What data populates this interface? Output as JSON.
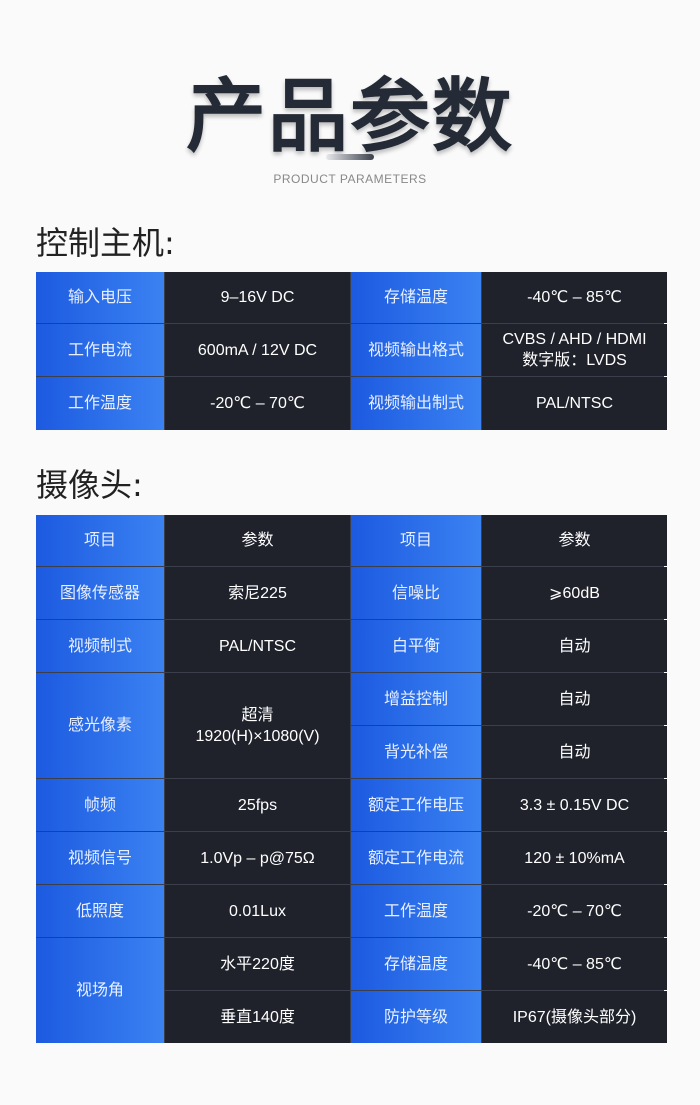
{
  "header": {
    "title": "产品参数",
    "subtitle": "PRODUCT PARAMETERS"
  },
  "host": {
    "heading": "控制主机:",
    "rows": [
      [
        "输入电压",
        "9–16V DC",
        "存储温度",
        "-40℃ – 85℃"
      ],
      [
        "工作电流",
        "600mA / 12V DC",
        "视频输出格式",
        "CVBS / AHD / HDMI\n数字版：LVDS"
      ],
      [
        "工作温度",
        "-20℃ – 70℃",
        "视频输出制式",
        "PAL/NTSC"
      ]
    ]
  },
  "camera": {
    "heading": "摄像头:",
    "cells": {
      "h1": "项目",
      "h2": "参数",
      "h3": "项目",
      "h4": "参数",
      "r1a": "图像传感器",
      "r1b": "索尼225",
      "r1c": "信噪比",
      "r1d": "⩾60dB",
      "r2a": "视频制式",
      "r2b": "PAL/NTSC",
      "r2c": "白平衡",
      "r2d": "自动",
      "r3a": "感光像素",
      "r3b": "超清\n1920(H)×1080(V)",
      "r3c": "增益控制",
      "r3d": "自动",
      "r4c": "背光补偿",
      "r4d": "自动",
      "r5a": "帧频",
      "r5b": "25fps",
      "r5c": "额定工作电压",
      "r5d": "3.3 ± 0.15V DC",
      "r6a": "视频信号",
      "r6b": "1.0Vp – p@75Ω",
      "r6c": "额定工作电流",
      "r6d": "120 ± 10%mA",
      "r7a": "低照度",
      "r7b": "0.01Lux",
      "r7c": "工作温度",
      "r7d": "-20℃ – 70℃",
      "r8a": "视场角",
      "r8b": "水平220度",
      "r8c": "存储温度",
      "r8d": "-40℃ – 85℃",
      "r9b": "垂直140度",
      "r9c": "防护等级",
      "r9d": "IP67(摄像头部分)"
    }
  },
  "colors": {
    "blue": "#2a6ee8",
    "dark": "#1f222b"
  }
}
